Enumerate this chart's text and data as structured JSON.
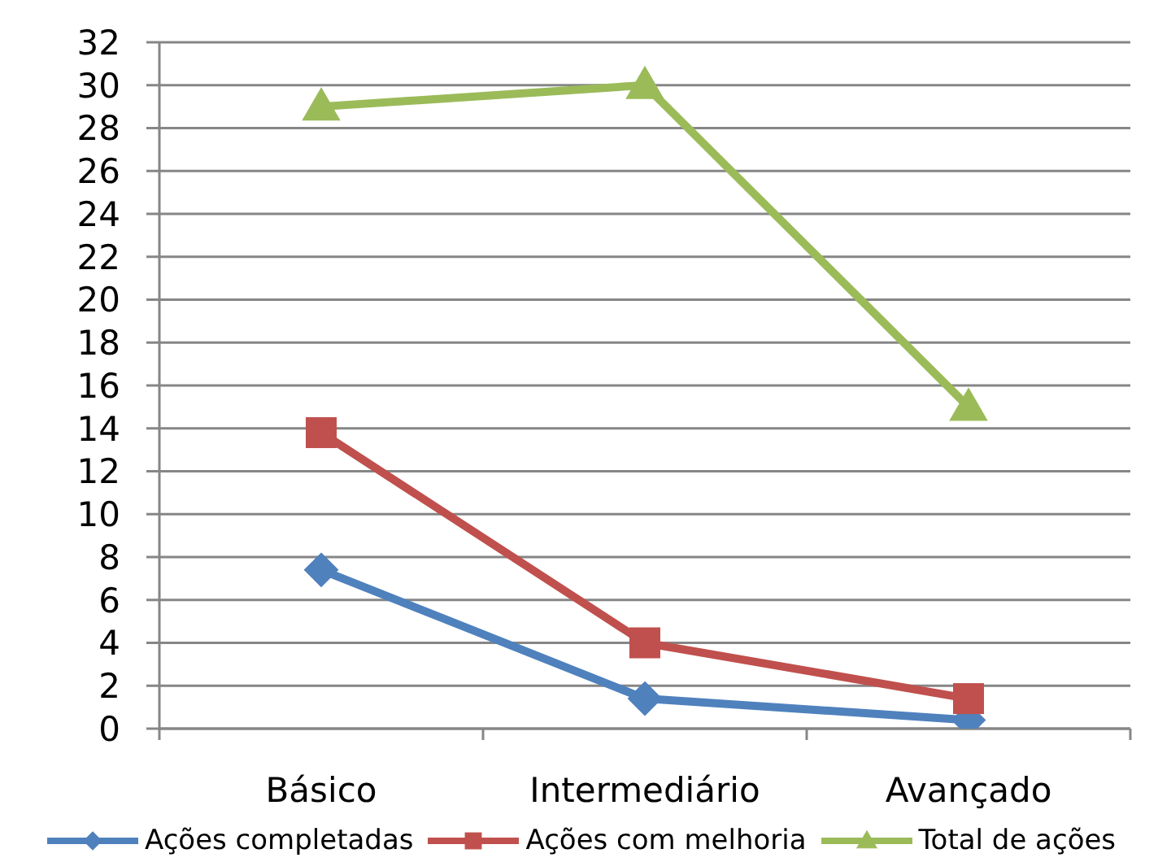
{
  "chart_data": {
    "type": "line",
    "categories": [
      "Básico",
      "Intermediário",
      "Avançado"
    ],
    "series": [
      {
        "name": "Ações completadas",
        "color": "#4f81bd",
        "marker": "diamond",
        "values": [
          7.4,
          1.4,
          0.4
        ]
      },
      {
        "name": "Ações com melhoria",
        "color": "#c0504d",
        "marker": "square",
        "values": [
          13.8,
          4,
          1.4
        ]
      },
      {
        "name": "Total de ações",
        "color": "#9bbb59",
        "marker": "triangle",
        "values": [
          29,
          30,
          15
        ]
      }
    ],
    "ylim": [
      0,
      32
    ],
    "yticks": [
      0,
      2,
      4,
      6,
      8,
      10,
      12,
      14,
      16,
      18,
      20,
      22,
      24,
      26,
      28,
      30,
      32
    ],
    "grid": "y",
    "legend": "bottom",
    "line_style": "solid"
  }
}
